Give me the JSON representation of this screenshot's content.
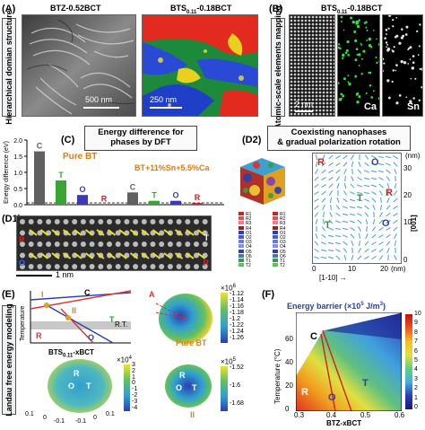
{
  "panelA": {
    "label": "(A)",
    "side_label": "Hierarchical domian structure",
    "title_left": "BTZ-0.52BCT",
    "title_right_main": "BTS",
    "title_right_sub": "0.11",
    "title_right_tail": "-0.18BCT",
    "scale_left": "500 nm",
    "scale_right": "250 nm"
  },
  "panelB": {
    "label": "(B)",
    "side_label": "Atomic-scale elements mapping",
    "title_main": "BTS",
    "title_sub": "0.11",
    "title_tail": "-0.18BCT",
    "scale": "2 nm",
    "map1": "Ca",
    "map2": "Sn"
  },
  "panelC": {
    "label": "(C)",
    "title": "Energy difference for phases by DFT",
    "ylabel": "Energy difference (eV)",
    "group1": "Pure BT",
    "group2": "BT+11%Sn+5.5%Ca",
    "colors": {
      "C": "#606060",
      "T": "#3aa535",
      "O": "#3a3ab8",
      "R": "#d42020"
    }
  },
  "chart_data": {
    "type": "bar",
    "ylabel": "Energy difference (eV)",
    "ylim": [
      0,
      2.0
    ],
    "yticks": [
      "0.0",
      "0.5",
      "1.0",
      "1.5",
      "2.0"
    ],
    "categories": [
      "C",
      "T",
      "O",
      "R",
      "C",
      "T",
      "O",
      "R"
    ],
    "series": [
      {
        "name": "Pure BT",
        "values": [
          1.65,
          0.75,
          0.3,
          0.02,
          null,
          null,
          null,
          null
        ]
      },
      {
        "name": "BT+11%Sn+5.5%Ca",
        "values": [
          null,
          null,
          null,
          null,
          0.38,
          0.12,
          0.12,
          0.05
        ]
      }
    ]
  },
  "panelD1": {
    "label": "(D1)",
    "scale": "1 nm",
    "phase_R": "R",
    "phase_T": "T",
    "phase_O": "O"
  },
  "panelD2": {
    "label": "(D2)",
    "title_line1": "Coexisting nanophases",
    "title_line2": "& gradual polarization rotation",
    "ylabel": "(nm)",
    "yticks": [
      "0",
      "10",
      "20",
      "30"
    ],
    "xticks": [
      "0",
      "10",
      "20"
    ],
    "xunit": "(nm)",
    "x_dir": "[1-10]",
    "y_dir": "[001]",
    "phase_labels": [
      "R",
      "O",
      "T",
      "R",
      "T",
      "O"
    ],
    "legend_col1": [
      "R1",
      "R2",
      "R3",
      "R4",
      "O1",
      "O2",
      "O3",
      "O4",
      "O5",
      "O6",
      "T1",
      "T2"
    ],
    "legend_col2": [
      "R1",
      "R2",
      "R3",
      "R4",
      "O1",
      "O2",
      "O3",
      "O4",
      "O5",
      "O6",
      "T1",
      "T2"
    ]
  },
  "panelE": {
    "label": "(E)",
    "side_label": "Landau free energy modeling",
    "ylabel": "Temperature",
    "xlabel_main": "BTS",
    "xlabel_sub": "0.11",
    "xlabel_tail": "-xBCT",
    "marker1": "I",
    "marker2": "II",
    "phase_C": "C",
    "phase_R": "R",
    "phase_O": "O",
    "phase_T": "T",
    "rt": "R.T.",
    "pureBT": "Pure BT",
    "arrow_A": "A",
    "cb1_exp": "×10",
    "cb1_pow": "6",
    "cb1_ticks": [
      "-1.12",
      "-1.14",
      "-1.16",
      "-1.18",
      "-1.2",
      "-1.22",
      "-1.24",
      "-1.26"
    ],
    "cb2_exp": "×10",
    "cb2_pow": "4",
    "cb2_ticks": [
      "3",
      "2",
      "1",
      "0",
      "-1",
      "-2",
      "-3",
      "-4"
    ],
    "cb2_axis": [
      "0.1",
      "0",
      "-0.1",
      "-0.1",
      "0",
      "0.1"
    ],
    "cb3_exp": "×10",
    "cb3_pow": "5",
    "cb3_ticks": [
      "-1.52",
      "-1.6",
      "-1.68"
    ],
    "sphere_labels": [
      "R",
      "O",
      "T"
    ]
  },
  "panelF": {
    "label": "(F)",
    "title": "Energy barrier",
    "title_unit": "(×10",
    "title_pow": "5",
    "title_tail": " J/m",
    "title_pow2": "3",
    "title_end": ")",
    "ylabel": "Temperature (°C)",
    "xlabel": "BTZ-xBCT",
    "xticks": [
      "0.3",
      "0.4",
      "0.5",
      "0.6"
    ],
    "yticks": [
      "0",
      "20",
      "40",
      "60"
    ],
    "cbar_ticks": [
      "10",
      "9",
      "8",
      "7",
      "6",
      "5",
      "4",
      "3",
      "2",
      "1",
      "0"
    ],
    "phase_C": "C",
    "phase_T": "T",
    "phase_R": "R",
    "phase_O": "O"
  }
}
